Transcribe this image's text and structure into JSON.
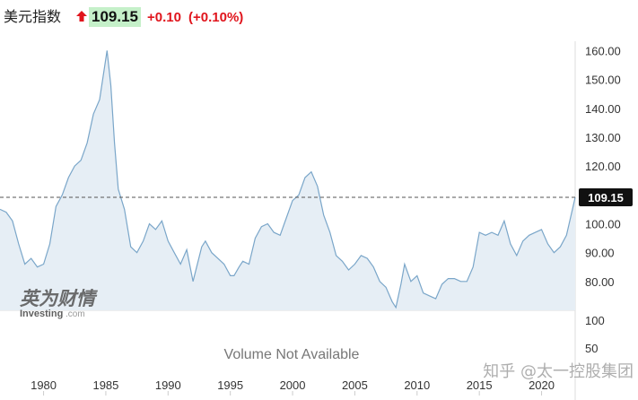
{
  "header": {
    "instrument_name": "美元指数",
    "price": "109.15",
    "change": "+0.10",
    "change_pct": "(+0.10%)",
    "direction_icon": "up-arrow-icon",
    "up_color": "#e0141c",
    "price_bg_color": "#c5f0c9"
  },
  "chart_data": {
    "type": "area",
    "series": [
      {
        "x": [
          1976.5,
          1977,
          1977.5,
          1978,
          1978.5,
          1979,
          1979.5,
          1980,
          1980.5,
          1981,
          1981.5,
          1982,
          1982.5,
          1983,
          1983.5,
          1984,
          1984.5,
          1985.1,
          1985.4,
          1985.7,
          1986,
          1986.5,
          1987,
          1987.5,
          1988,
          1988.5,
          1989,
          1989.5,
          1990,
          1990.5,
          1991,
          1991.5,
          1992,
          1992.7,
          1993,
          1993.5,
          1994,
          1994.5,
          1995,
          1995.3,
          1995.7,
          1996,
          1996.5,
          1997,
          1997.5,
          1998,
          1998.5,
          1999,
          1999.5,
          2000,
          2000.5,
          2001,
          2001.5,
          2002,
          2002.5,
          2003,
          2003.5,
          2004,
          2004.5,
          2005,
          2005.5,
          2006,
          2006.5,
          2007,
          2007.5,
          2008,
          2008.3,
          2008.7,
          2009,
          2009.5,
          2010,
          2010.5,
          2011,
          2011.5,
          2012,
          2012.5,
          2013,
          2013.5,
          2014,
          2014.5,
          2015,
          2015.5,
          2016,
          2016.5,
          2017,
          2017.5,
          2018,
          2018.5,
          2019,
          2019.5,
          2020,
          2020.5,
          2021,
          2021.5,
          2022,
          2022.7
        ],
        "y": [
          105,
          104,
          101,
          93,
          86,
          88,
          85,
          86,
          93,
          106,
          110,
          116,
          120,
          122,
          128,
          138,
          143,
          160,
          148,
          128,
          112,
          105,
          92,
          90,
          94,
          100,
          98,
          101,
          94,
          90,
          86,
          91,
          80,
          92,
          94,
          90,
          88,
          86,
          82,
          82,
          85,
          87,
          86,
          95,
          99,
          100,
          97,
          96,
          102,
          108,
          110,
          116,
          118,
          113,
          103,
          97,
          89,
          87,
          84,
          86,
          89,
          88,
          85,
          80,
          78,
          73,
          71,
          79,
          86,
          80,
          82,
          76,
          75,
          74,
          79,
          81,
          81,
          80,
          80,
          85,
          97,
          96,
          97,
          96,
          101,
          93,
          89,
          94,
          96,
          97,
          98,
          93,
          90,
          92,
          96,
          109.15
        ]
      }
    ],
    "xlim": [
      1976.5,
      2022.7
    ],
    "x_ticks": [
      "1980",
      "1985",
      "1990",
      "1995",
      "2000",
      "2005",
      "2010",
      "2015",
      "2020"
    ],
    "ylim": [
      70,
      165
    ],
    "y_ticks": [
      "160.00",
      "150.00",
      "140.00",
      "130.00",
      "120.00",
      "110.00",
      "100.00",
      "90.00",
      "80.00"
    ],
    "last_value_label": "109.15",
    "last_value": 109.15,
    "volume_ticks": [
      "100",
      "50"
    ],
    "volume_message": "Volume Not Available",
    "line_color": "#7aa6c9",
    "fill_color": "#e6eef5",
    "grid": false
  },
  "watermarks": {
    "brand_cn": "英为财情",
    "brand_en": "Investing",
    "brand_suffix": ".com",
    "attribution": "知乎 @太一控股集团"
  }
}
